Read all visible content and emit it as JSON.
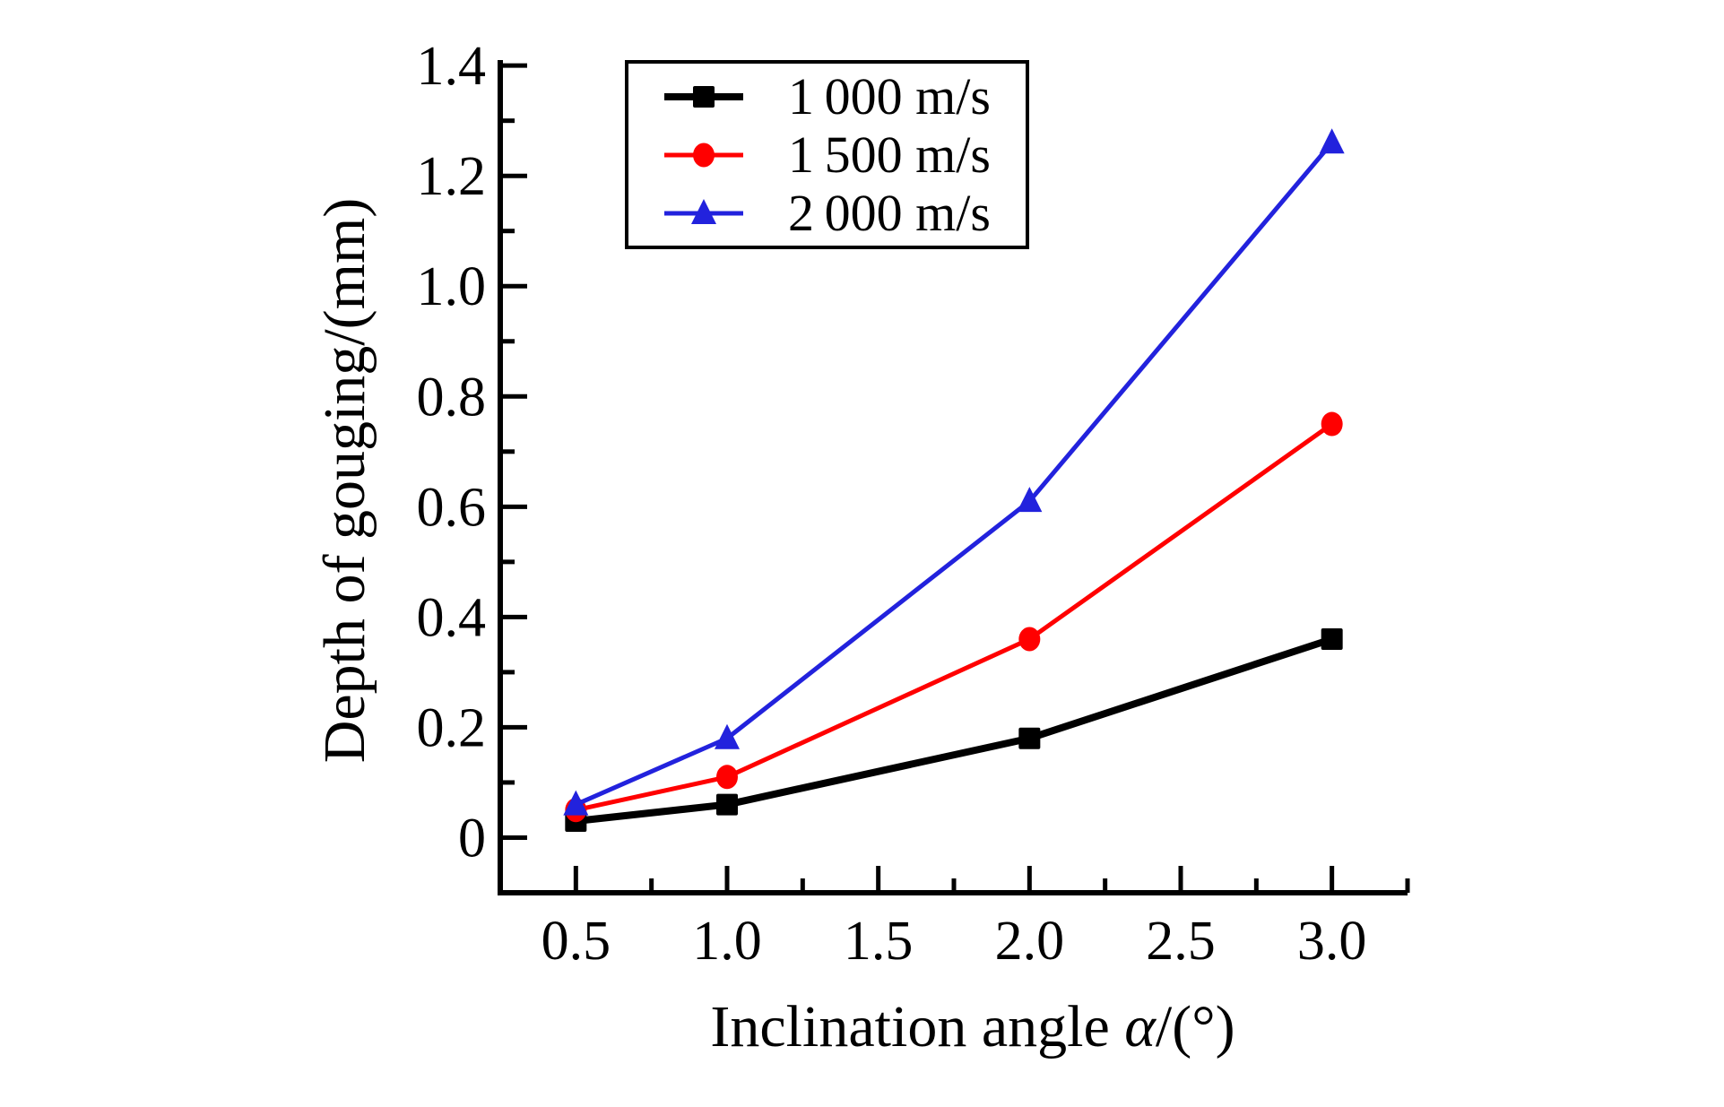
{
  "figure": {
    "background": "#ffffff",
    "axis_color": "#000000"
  },
  "chart_data": {
    "type": "line",
    "title": "",
    "xlabel": "Inclination angle α/(°)",
    "xlabel_parts": {
      "prefix": "Inclination angle ",
      "symbol": "α",
      "suffix": "/(°)"
    },
    "ylabel": "Depth of gouging/(mm)",
    "xlim": [
      0.25,
      3.25
    ],
    "ylim": [
      -0.1,
      1.41
    ],
    "grid": false,
    "legend_position": "top-left-inside",
    "x": [
      0.5,
      1.0,
      2.0,
      3.0
    ],
    "xticks_major": [
      0.5,
      1.0,
      1.5,
      2.0,
      2.5,
      3.0
    ],
    "xtick_labels": [
      "0.5",
      "1.0",
      "1.5",
      "2.0",
      "2.5",
      "3.0"
    ],
    "xticks_minor": [
      0.75,
      1.25,
      1.75,
      2.25,
      2.75,
      3.25
    ],
    "yticks_major": [
      0,
      0.2,
      0.4,
      0.6,
      0.8,
      1.0,
      1.2,
      1.4
    ],
    "ytick_labels": [
      "0",
      "0.2",
      "0.4",
      "0.6",
      "0.8",
      "1.0",
      "1.2",
      "1.4"
    ],
    "yticks_minor": [
      0.1,
      0.3,
      0.5,
      0.7,
      0.9,
      1.1,
      1.3
    ],
    "series": [
      {
        "name": "1 000 m/s",
        "color": "#000000",
        "marker": "square",
        "line_width": 8,
        "values": [
          0.03,
          0.06,
          0.18,
          0.36
        ]
      },
      {
        "name": "1 500 m/s",
        "color": "#ff0000",
        "marker": "circle",
        "line_width": 5,
        "values": [
          0.05,
          0.11,
          0.36,
          0.75
        ]
      },
      {
        "name": "2 000 m/s",
        "color": "#2222dd",
        "marker": "triangle",
        "line_width": 5,
        "values": [
          0.06,
          0.18,
          0.61,
          1.26
        ]
      }
    ]
  }
}
